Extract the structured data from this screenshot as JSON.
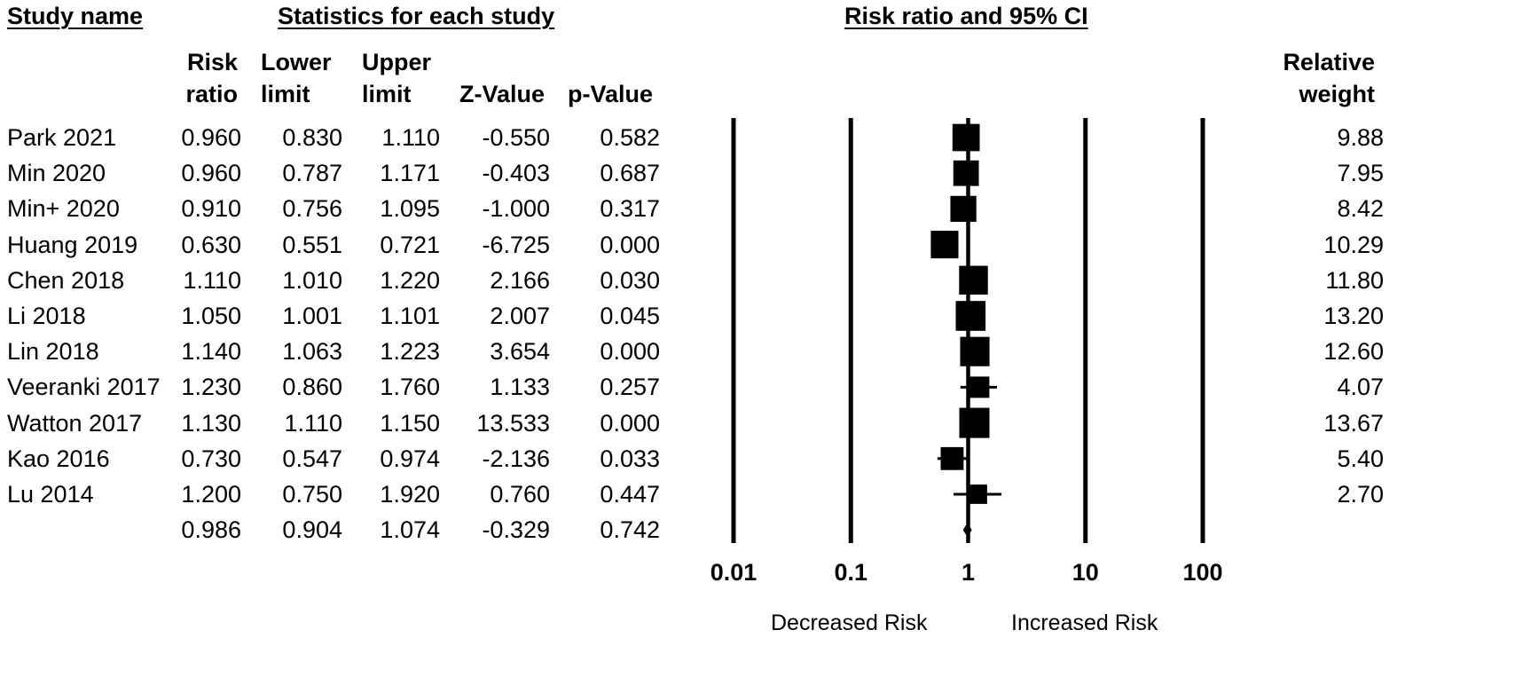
{
  "headers": {
    "study_name": "Study name",
    "stats": "Statistics for each study",
    "plot": "Risk ratio and 95% CI"
  },
  "columns": {
    "rr": [
      "Risk",
      "ratio"
    ],
    "lower": [
      "Lower",
      "limit"
    ],
    "upper": [
      "Upper",
      "limit"
    ],
    "z": "Z-Value",
    "p": "p-Value",
    "weight": [
      "Relative",
      "weight"
    ]
  },
  "rows": [
    {
      "study": "Park 2021",
      "rr": "0.960",
      "lower": "0.830",
      "upper": "1.110",
      "z": "-0.550",
      "p": "0.582",
      "weight": "9.88"
    },
    {
      "study": "Min 2020",
      "rr": "0.960",
      "lower": "0.787",
      "upper": "1.171",
      "z": "-0.403",
      "p": "0.687",
      "weight": "7.95"
    },
    {
      "study": "Min+ 2020",
      "rr": "0.910",
      "lower": "0.756",
      "upper": "1.095",
      "z": "-1.000",
      "p": "0.317",
      "weight": "8.42"
    },
    {
      "study": "Huang 2019",
      "rr": "0.630",
      "lower": "0.551",
      "upper": "0.721",
      "z": "-6.725",
      "p": "0.000",
      "weight": "10.29"
    },
    {
      "study": "Chen 2018",
      "rr": "1.110",
      "lower": "1.010",
      "upper": "1.220",
      "z": "2.166",
      "p": "0.030",
      "weight": "11.80"
    },
    {
      "study": "Li 2018",
      "rr": "1.050",
      "lower": "1.001",
      "upper": "1.101",
      "z": "2.007",
      "p": "0.045",
      "weight": "13.20"
    },
    {
      "study": "Lin 2018",
      "rr": "1.140",
      "lower": "1.063",
      "upper": "1.223",
      "z": "3.654",
      "p": "0.000",
      "weight": "12.60"
    },
    {
      "study": "Veeranki 2017",
      "rr": "1.230",
      "lower": "0.860",
      "upper": "1.760",
      "z": "1.133",
      "p": "0.257",
      "weight": "4.07"
    },
    {
      "study": "Watton 2017",
      "rr": "1.130",
      "lower": "1.110",
      "upper": "1.150",
      "z": "13.533",
      "p": "0.000",
      "weight": "13.67"
    },
    {
      "study": "Kao 2016",
      "rr": "0.730",
      "lower": "0.547",
      "upper": "0.974",
      "z": "-2.136",
      "p": "0.033",
      "weight": "5.40"
    },
    {
      "study": "Lu 2014",
      "rr": "1.200",
      "lower": "0.750",
      "upper": "1.920",
      "z": "0.760",
      "p": "0.447",
      "weight": "2.70"
    }
  ],
  "summary": {
    "study": "",
    "rr": "0.986",
    "lower": "0.904",
    "upper": "1.074",
    "z": "-0.329",
    "p": "0.742",
    "weight": ""
  },
  "axis": {
    "ticks": [
      "0.01",
      "0.1",
      "1",
      "10",
      "100"
    ],
    "decreased": "Decreased Risk",
    "increased": "Increased Risk"
  },
  "chart_data": {
    "type": "forest",
    "title": "Risk ratio and 95% CI",
    "scale": "log10",
    "xlim": [
      0.01,
      100
    ],
    "reference_line": 1,
    "xticks": [
      0.01,
      0.1,
      1,
      10,
      100
    ],
    "left_label": "Decreased Risk",
    "right_label": "Increased Risk",
    "studies": [
      "Park 2021",
      "Min 2020",
      "Min+ 2020",
      "Huang 2019",
      "Chen 2018",
      "Li 2018",
      "Lin 2018",
      "Veeranki 2017",
      "Watton 2017",
      "Kao 2016",
      "Lu 2014"
    ],
    "point": [
      0.96,
      0.96,
      0.91,
      0.63,
      1.11,
      1.05,
      1.14,
      1.23,
      1.13,
      0.73,
      1.2
    ],
    "lower": [
      0.83,
      0.787,
      0.756,
      0.551,
      1.01,
      1.001,
      1.063,
      0.86,
      1.11,
      0.547,
      0.75
    ],
    "upper": [
      1.11,
      1.171,
      1.095,
      0.721,
      1.22,
      1.101,
      1.223,
      1.76,
      1.15,
      0.974,
      1.92
    ],
    "weight": [
      9.88,
      7.95,
      8.42,
      10.29,
      11.8,
      13.2,
      12.6,
      4.07,
      13.67,
      5.4,
      2.7
    ],
    "summary": {
      "point": 0.986,
      "lower": 0.904,
      "upper": 1.074
    }
  }
}
